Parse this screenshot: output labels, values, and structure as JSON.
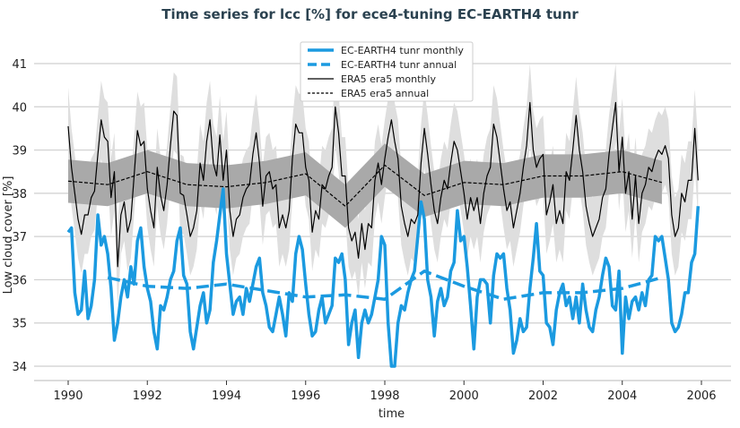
{
  "chart_data": {
    "type": "line",
    "title": "Time series for lcc [%] for ece4-tuning EC-EARTH4 tunr",
    "xlabel": "time",
    "ylabel": "Low cloud cover [%]",
    "xlim": [
      1989.15,
      2006.7
    ],
    "ylim": [
      33.7,
      41.5
    ],
    "xticks": [
      "1990",
      "1992",
      "1994",
      "1996",
      "1998",
      "2000",
      "2002",
      "2004",
      "2006"
    ],
    "yticks": [
      "34",
      "35",
      "36",
      "37",
      "38",
      "39",
      "40",
      "41"
    ],
    "grid": "horizontal",
    "legend_position": "top-center",
    "colors": {
      "model": "#1b9ae0",
      "reference": "#000000",
      "band_light": "#dedede",
      "band_dark": "#a9a9a9"
    },
    "monthly_start_year": 1990,
    "series": [
      {
        "name": "EC-EARTH4 tunr monthly",
        "style": "solid",
        "color": "#1b9ae0",
        "values": [
          37.1,
          37.2,
          35.7,
          35.2,
          35.3,
          36.2,
          35.1,
          35.4,
          36.0,
          37.5,
          36.8,
          37.0,
          36.6,
          35.8,
          34.6,
          35.0,
          35.6,
          36.0,
          35.6,
          36.3,
          35.9,
          36.9,
          37.2,
          36.3,
          35.8,
          35.5,
          34.8,
          34.4,
          35.4,
          35.3,
          35.6,
          36.0,
          36.2,
          36.9,
          37.2,
          36.1,
          35.9,
          34.8,
          34.4,
          34.9,
          35.4,
          35.7,
          35.0,
          35.3,
          36.4,
          36.9,
          37.5,
          38.1,
          36.6,
          35.9,
          35.2,
          35.5,
          35.6,
          35.2,
          35.8,
          35.5,
          35.9,
          36.3,
          36.5,
          35.7,
          35.4,
          34.9,
          34.8,
          35.2,
          35.6,
          35.2,
          34.7,
          35.7,
          35.5,
          36.6,
          37.0,
          36.7,
          35.9,
          35.2,
          34.7,
          34.8,
          35.3,
          35.6,
          35.0,
          35.2,
          35.4,
          36.5,
          36.4,
          36.6,
          36.0,
          34.5,
          35.0,
          35.3,
          34.2,
          35.0,
          35.3,
          35.0,
          35.2,
          35.6,
          36.0,
          37.0,
          36.8,
          35.0,
          34.0,
          34.0,
          35.0,
          35.4,
          35.3,
          35.7,
          36.0,
          36.2,
          37.0,
          37.8,
          37.4,
          36.0,
          35.6,
          34.7,
          35.5,
          35.8,
          35.4,
          35.6,
          36.2,
          36.4,
          37.6,
          36.9,
          37.0,
          36.3,
          35.4,
          34.4,
          35.6,
          36.0,
          36.0,
          35.9,
          35.0,
          36.1,
          36.6,
          36.5,
          36.6,
          35.8,
          35.3,
          34.3,
          34.6,
          35.1,
          34.8,
          34.9,
          35.8,
          36.5,
          37.3,
          36.2,
          36.1,
          35.0,
          34.9,
          34.5,
          35.3,
          35.7,
          35.9,
          35.4,
          35.6,
          35.1,
          35.6,
          35.0,
          35.9,
          35.3,
          34.9,
          34.8,
          35.3,
          35.6,
          36.1,
          36.5,
          36.3,
          35.4,
          35.3,
          36.2,
          34.3,
          35.6,
          35.1,
          35.5,
          35.6,
          35.3,
          35.7,
          35.4,
          36.0,
          36.1,
          37.0,
          36.9,
          37.0,
          36.5,
          36.0,
          35.0,
          34.8,
          34.9,
          35.2,
          35.7,
          35.7,
          36.4,
          36.6,
          37.7
        ]
      },
      {
        "name": "EC-EARTH4 tunr annual",
        "style": "dashed",
        "color": "#1b9ae0",
        "x": [
          1991,
          1992,
          1993,
          1994,
          1995,
          1996,
          1997,
          1998,
          1999,
          2000,
          2001,
          2002,
          2003,
          2004,
          2005
        ],
        "values": [
          36.05,
          35.85,
          35.8,
          35.9,
          35.75,
          35.6,
          35.65,
          35.55,
          36.2,
          35.85,
          35.55,
          35.7,
          35.7,
          35.8,
          36.05
        ]
      },
      {
        "name": "ERA5 era5 monthly",
        "style": "solid",
        "color": "#000000",
        "spread": 0.9,
        "values": [
          39.55,
          38.6,
          38.0,
          37.4,
          37.05,
          37.5,
          37.5,
          37.9,
          38.05,
          38.9,
          39.7,
          39.3,
          39.2,
          37.9,
          38.5,
          36.3,
          37.5,
          37.8,
          37.1,
          37.4,
          38.4,
          39.45,
          39.1,
          39.2,
          38.1,
          37.6,
          37.2,
          38.6,
          37.95,
          37.6,
          38.2,
          39.1,
          39.9,
          39.8,
          38.0,
          37.95,
          37.5,
          37.0,
          37.2,
          37.6,
          38.7,
          38.3,
          39.2,
          39.7,
          38.7,
          38.4,
          39.35,
          38.3,
          39.0,
          37.6,
          37.0,
          37.4,
          37.5,
          37.9,
          38.1,
          38.2,
          38.9,
          39.4,
          38.7,
          37.7,
          38.4,
          38.5,
          38.1,
          38.2,
          37.2,
          37.5,
          37.2,
          37.6,
          38.8,
          39.6,
          39.4,
          39.4,
          38.6,
          38.3,
          37.1,
          37.6,
          37.4,
          38.2,
          38.1,
          38.4,
          38.6,
          40.0,
          39.4,
          38.4,
          38.4,
          37.2,
          36.9,
          37.1,
          36.5,
          37.3,
          36.7,
          37.3,
          37.2,
          38.3,
          38.7,
          38.2,
          38.8,
          39.3,
          39.7,
          39.2,
          38.8,
          37.7,
          37.3,
          37.0,
          37.4,
          37.3,
          37.5,
          38.7,
          39.5,
          38.9,
          38.2,
          37.6,
          37.3,
          37.9,
          38.3,
          38.1,
          38.7,
          39.2,
          39.0,
          38.5,
          38.0,
          37.4,
          37.9,
          37.6,
          37.9,
          37.3,
          38.0,
          38.4,
          38.6,
          39.6,
          39.3,
          38.7,
          38.1,
          37.6,
          37.8,
          37.2,
          37.6,
          38.0,
          38.6,
          39.1,
          40.1,
          39.0,
          38.6,
          38.8,
          38.9,
          37.5,
          37.8,
          38.2,
          37.3,
          37.6,
          37.3,
          38.5,
          38.3,
          39.0,
          39.8,
          39.0,
          38.5,
          37.7,
          37.3,
          37.0,
          37.2,
          37.4,
          37.9,
          38.1,
          38.9,
          39.5,
          40.1,
          38.5,
          39.3,
          38.0,
          38.5,
          37.4,
          38.4,
          37.3,
          38.0,
          38.2,
          38.6,
          38.5,
          38.8,
          39.0,
          38.9,
          39.1,
          38.8,
          37.5,
          37.0,
          37.2,
          38.0,
          37.8,
          38.3,
          38.3,
          39.5,
          38.3
        ]
      },
      {
        "name": "ERA5 era5 annual",
        "style": "dashed",
        "color": "#000000",
        "spread": 0.5,
        "x": [
          1990,
          1991,
          1992,
          1993,
          1994,
          1995,
          1996,
          1997,
          1998,
          1999,
          2000,
          2001,
          2002,
          2003,
          2004,
          2005
        ],
        "values": [
          38.28,
          38.2,
          38.5,
          38.2,
          38.15,
          38.25,
          38.45,
          37.7,
          38.65,
          37.95,
          38.25,
          38.2,
          38.4,
          38.4,
          38.5,
          38.25
        ]
      }
    ]
  }
}
